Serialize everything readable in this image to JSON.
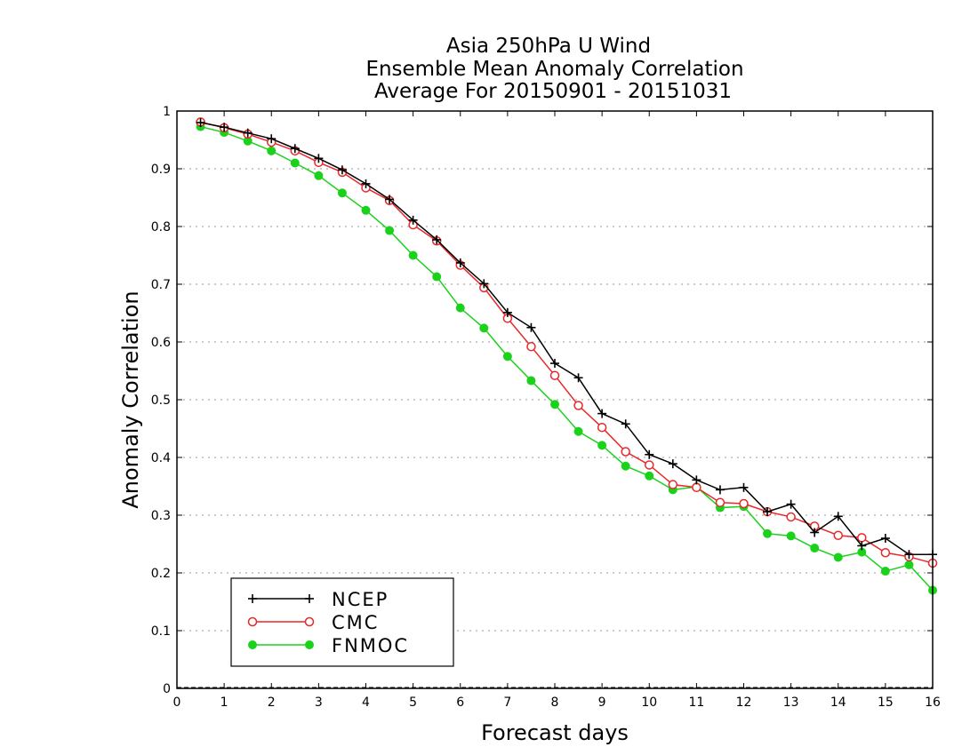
{
  "chart_data": {
    "type": "line",
    "title_lines": [
      "Asia 250hPa U Wind",
      "Ensemble Mean Anomaly Correlation",
      "Average For 20150901 - 20151031"
    ],
    "xlabel": "Forecast days",
    "ylabel": "Anomaly Correlation",
    "xlim": [
      0,
      16
    ],
    "ylim": [
      0,
      1
    ],
    "x_ticks": [
      "0",
      "1",
      "2",
      "3",
      "4",
      "5",
      "6",
      "7",
      "8",
      "9",
      "10",
      "11",
      "12",
      "13",
      "14",
      "15",
      "16"
    ],
    "y_ticks": [
      "0",
      "0.1",
      "0.2",
      "0.3",
      "0.4",
      "0.5",
      "0.6",
      "0.7",
      "0.8",
      "0.9",
      "1"
    ],
    "grid": "horizontal dotted",
    "legend_position": "bottom-left",
    "x": [
      0.5,
      1,
      1.5,
      2,
      2.5,
      3,
      3.5,
      4,
      4.5,
      5,
      5.5,
      6,
      6.5,
      7,
      7.5,
      8,
      8.5,
      9,
      9.5,
      10,
      10.5,
      11,
      11.5,
      12,
      12.5,
      13,
      13.5,
      14,
      14.5,
      15,
      15.5,
      16
    ],
    "series": [
      {
        "name": "NCEP",
        "color": "#000000",
        "marker": "plus",
        "values": [
          0.98,
          0.972,
          0.962,
          0.952,
          0.935,
          0.918,
          0.898,
          0.874,
          0.847,
          0.811,
          0.777,
          0.737,
          0.701,
          0.651,
          0.625,
          0.563,
          0.538,
          0.476,
          0.458,
          0.405,
          0.389,
          0.361,
          0.344,
          0.348,
          0.306,
          0.319,
          0.27,
          0.298,
          0.247,
          0.26,
          0.232,
          0.232
        ]
      },
      {
        "name": "CMC",
        "color": "#e8282a",
        "marker": "open-circle",
        "values": [
          0.981,
          0.971,
          0.96,
          0.946,
          0.931,
          0.911,
          0.894,
          0.867,
          0.845,
          0.803,
          0.775,
          0.733,
          0.694,
          0.641,
          0.592,
          0.542,
          0.49,
          0.452,
          0.41,
          0.387,
          0.353,
          0.348,
          0.322,
          0.32,
          0.306,
          0.297,
          0.281,
          0.265,
          0.261,
          0.235,
          0.228,
          0.217
        ]
      },
      {
        "name": "FNMOC",
        "color": "#1bd21b",
        "marker": "filled-circle",
        "values": [
          0.973,
          0.963,
          0.948,
          0.931,
          0.91,
          0.888,
          0.858,
          0.828,
          0.793,
          0.75,
          0.713,
          0.659,
          0.624,
          0.575,
          0.533,
          0.492,
          0.445,
          0.421,
          0.385,
          0.368,
          0.344,
          0.349,
          0.313,
          0.315,
          0.268,
          0.264,
          0.243,
          0.227,
          0.236,
          0.203,
          0.214,
          0.17
        ]
      }
    ]
  }
}
